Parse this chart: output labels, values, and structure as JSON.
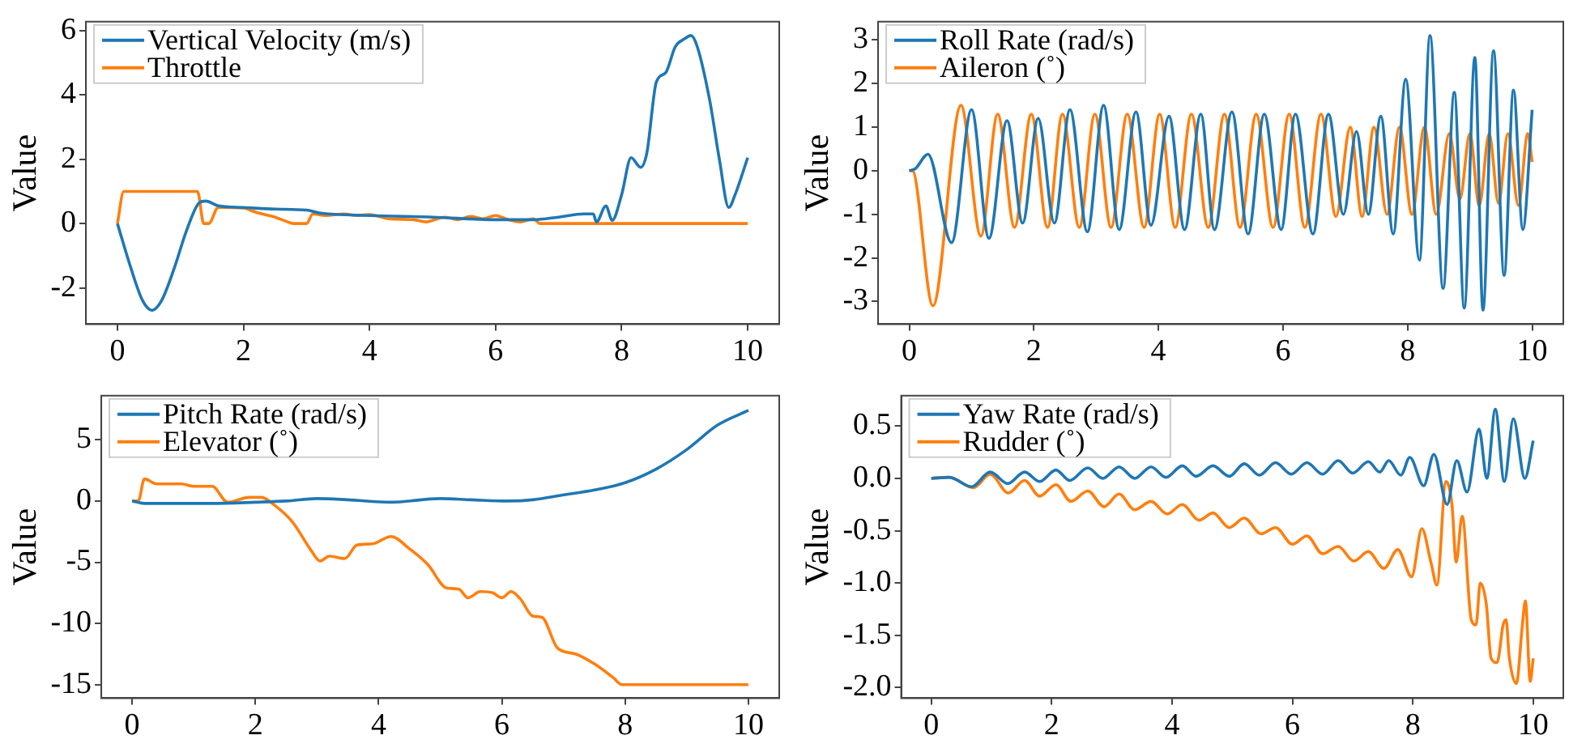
{
  "chart_data": [
    {
      "type": "line",
      "ylabel": "Value",
      "legend": "top left",
      "grid": false,
      "xlim": [
        -0.5,
        10.5
      ],
      "xticks": [
        0,
        2,
        4,
        6,
        8,
        10
      ],
      "ylim": [
        -3.13,
        6.28
      ],
      "yticks": [
        {
          "value": -2,
          "label": "-2"
        },
        0,
        2,
        4,
        6
      ],
      "series": [
        {
          "name": "Vertical Velocity (m/s)",
          "color": "#1f77b4",
          "x": [
            0,
            0.2,
            0.4,
            0.55,
            0.7,
            0.9,
            1.1,
            1.3,
            1.4,
            1.6,
            2,
            2.5,
            3,
            3.2,
            4,
            5,
            6,
            6.6,
            7,
            7.4,
            7.55,
            7.6,
            7.75,
            7.85,
            8,
            8.15,
            8.3,
            8.4,
            8.55,
            8.7,
            8.85,
            9,
            9.1,
            9.2,
            9.4,
            9.55,
            9.7,
            9.8,
            10
          ],
          "values": [
            0,
            -1.3,
            -2.4,
            -2.7,
            -2.4,
            -1.4,
            -0.2,
            0.65,
            0.7,
            0.55,
            0.5,
            0.45,
            0.42,
            0.33,
            0.25,
            0.2,
            0.12,
            0.12,
            0.2,
            0.3,
            0.3,
            0.05,
            0.55,
            0.1,
            0.9,
            2.05,
            1.75,
            2.2,
            4.4,
            4.7,
            5.5,
            5.75,
            5.85,
            5.5,
            3.8,
            2.0,
            0.5,
            0.9,
            2.05
          ]
        },
        {
          "name": "Throttle",
          "color": "#ff7f0e",
          "x": [
            0,
            0.1,
            1.27,
            1.37,
            1.45,
            1.6,
            2,
            2.2,
            2.5,
            2.7,
            2.8,
            3,
            3.1,
            3.3,
            3.6,
            3.8,
            4,
            4.3,
            4.7,
            4.9,
            5,
            5.2,
            5.4,
            5.6,
            5.8,
            6,
            6.2,
            6.4,
            6.6,
            6.7,
            10
          ],
          "values": [
            0,
            1,
            1,
            0,
            0,
            0.5,
            0.48,
            0.35,
            0.2,
            0.05,
            0,
            0,
            0.3,
            0.25,
            0.3,
            0.25,
            0.28,
            0.15,
            0.12,
            0.05,
            0.1,
            0.2,
            0.12,
            0.22,
            0.15,
            0.25,
            0.12,
            0.05,
            0.15,
            0,
            0
          ]
        }
      ]
    },
    {
      "type": "line",
      "ylabel": "Value",
      "legend": "top left",
      "grid": false,
      "xlim": [
        -0.5,
        10.5
      ],
      "xticks": [
        0,
        2,
        4,
        6,
        8,
        10
      ],
      "ylim": [
        -3.52,
        3.42
      ],
      "yticks": [
        {
          "value": -3,
          "label": "-3"
        },
        {
          "value": -2,
          "label": "-2"
        },
        {
          "value": -1,
          "label": "-1"
        },
        0,
        1,
        2,
        3
      ],
      "series": [
        {
          "name": "Roll Rate (rad/s)",
          "color": "#1f77b4",
          "x": [
            0,
            0.1,
            0.3,
            0.68,
            1.0,
            1.28,
            1.57,
            1.82,
            2.07,
            2.33,
            2.58,
            2.86,
            3.12,
            3.37,
            3.64,
            3.88,
            4.17,
            4.42,
            4.68,
            4.9,
            5.18,
            5.44,
            5.7,
            5.97,
            6.2,
            6.48,
            6.73,
            6.97,
            7.18,
            7.37,
            7.57,
            7.77,
            7.97,
            8.19,
            8.36,
            8.57,
            8.75,
            8.91,
            9.08,
            9.21,
            9.38,
            9.55,
            9.7,
            9.85,
            10
          ],
          "values": [
            0,
            0.05,
            0.38,
            -1.65,
            1.4,
            -1.55,
            1.15,
            -1.2,
            1.2,
            -1.2,
            1.4,
            -1.4,
            1.5,
            -1.35,
            1.35,
            -1.25,
            1.25,
            -1.35,
            1.3,
            -1.35,
            1.35,
            -1.45,
            1.3,
            -1.35,
            1.3,
            -1.45,
            1.3,
            -1.0,
            0.9,
            -1.0,
            1.25,
            -1.45,
            2.1,
            -2.05,
            3.1,
            -2.7,
            1.8,
            -3.15,
            2.6,
            -3.2,
            2.75,
            -2.4,
            1.85,
            -1.35,
            1.4
          ]
        },
        {
          "name": "Aileron (˚)",
          "color": "#ff7f0e",
          "x": [
            0,
            0.05,
            0.38,
            0.83,
            1.15,
            1.42,
            1.69,
            1.96,
            2.22,
            2.46,
            2.73,
            2.98,
            3.24,
            3.5,
            3.77,
            4.02,
            4.27,
            4.53,
            4.8,
            5.06,
            5.31,
            5.57,
            5.84,
            6.1,
            6.35,
            6.61,
            6.85,
            7.08,
            7.27,
            7.46,
            7.67,
            7.87,
            8.07,
            8.27,
            8.46,
            8.67,
            8.84,
            9.0,
            9.15,
            9.31,
            9.46,
            9.61,
            9.78,
            9.93,
            10
          ],
          "values": [
            0,
            0,
            -3.1,
            1.5,
            -1.5,
            1.3,
            -1.3,
            1.3,
            -1.3,
            1.3,
            -1.3,
            1.3,
            -1.3,
            1.3,
            -1.3,
            1.3,
            -1.3,
            1.3,
            -1.3,
            1.3,
            -1.3,
            1.3,
            -1.3,
            1.3,
            -1.3,
            1.3,
            -1.05,
            1.0,
            -1.05,
            1.0,
            -1.0,
            1.0,
            -1.0,
            1.0,
            -1.0,
            0.85,
            -0.65,
            0.85,
            -0.8,
            0.85,
            -0.75,
            0.85,
            -0.8,
            0.85,
            0.2
          ]
        }
      ]
    },
    {
      "type": "line",
      "ylabel": "Value",
      "legend": "top left",
      "grid": false,
      "xlim": [
        -0.5,
        10.5
      ],
      "xticks": [
        0,
        2,
        4,
        6,
        8,
        10
      ],
      "ylim": [
        -16.1,
        8.6
      ],
      "yticks": [
        {
          "value": -15,
          "label": "-15"
        },
        {
          "value": -10,
          "label": "-10"
        },
        {
          "value": -5,
          "label": "-5"
        },
        0,
        5
      ],
      "series": [
        {
          "name": "Pitch Rate (rad/s)",
          "color": "#1f77b4",
          "x": [
            0,
            0.2,
            1.3,
            2,
            2.5,
            3,
            3.5,
            4.2,
            5,
            5.5,
            6.1,
            6.5,
            7,
            7.5,
            8,
            8.5,
            9,
            9.5,
            10
          ],
          "values": [
            0,
            -0.2,
            -0.2,
            -0.1,
            0,
            0.2,
            0.1,
            -0.1,
            0.2,
            0.1,
            0,
            0.1,
            0.5,
            0.9,
            1.5,
            2.6,
            4.2,
            6.2,
            7.4
          ]
        },
        {
          "name": "Elevator (˚)",
          "color": "#ff7f0e",
          "x": [
            0,
            0.1,
            0.2,
            0.4,
            0.8,
            1,
            1.3,
            1.55,
            1.9,
            2.1,
            2.3,
            2.6,
            2.9,
            3.05,
            3.2,
            3.45,
            3.65,
            3.9,
            4.2,
            4.5,
            4.8,
            5.1,
            5.3,
            5.45,
            5.65,
            5.85,
            6,
            6.15,
            6.3,
            6.5,
            6.65,
            6.9,
            7.2,
            7.5,
            7.8,
            7.95,
            10
          ],
          "values": [
            0,
            0,
            1.8,
            1.4,
            1.4,
            1.2,
            1.2,
            -0.1,
            0.3,
            0.3,
            -0.3,
            -1.7,
            -4,
            -4.9,
            -4.5,
            -4.7,
            -3.6,
            -3.5,
            -2.9,
            -3.9,
            -5.2,
            -7.1,
            -7.2,
            -7.9,
            -7.4,
            -7.5,
            -7.9,
            -7.4,
            -8,
            -9.4,
            -9.5,
            -12,
            -12.5,
            -13.3,
            -14.4,
            -15,
            -15
          ]
        }
      ]
    },
    {
      "type": "line",
      "ylabel": "Value",
      "legend": "top left",
      "grid": false,
      "xlim": [
        -0.5,
        10.5
      ],
      "xticks": [
        0,
        2,
        4,
        6,
        8,
        10
      ],
      "ylim": [
        -2.1,
        0.79
      ],
      "yticks": [
        {
          "value": -2,
          "label": "-2.0"
        },
        {
          "value": -1.5,
          "label": "-1.5"
        },
        {
          "value": -1,
          "label": "-1.0"
        },
        {
          "value": -0.5,
          "label": "-0.5"
        },
        {
          "value": 0,
          "label": "0.0"
        },
        0.5
      ],
      "series": [
        {
          "name": "Yaw Rate (rad/s)",
          "color": "#1f77b4",
          "x": [
            0,
            0.3,
            0.67,
            0.98,
            1.27,
            1.55,
            1.8,
            2.07,
            2.3,
            2.6,
            2.85,
            3.12,
            3.38,
            3.65,
            3.9,
            4.17,
            4.4,
            4.68,
            4.95,
            5.2,
            5.45,
            5.72,
            5.98,
            6.24,
            6.5,
            6.76,
            7.0,
            7.26,
            7.45,
            7.6,
            7.8,
            7.95,
            8.18,
            8.35,
            8.57,
            8.73,
            8.9,
            9.1,
            9.23,
            9.37,
            9.52,
            9.67,
            9.86,
            10
          ],
          "values": [
            0,
            0.01,
            -0.08,
            0.06,
            -0.05,
            0.06,
            -0.03,
            0.08,
            -0.02,
            0.1,
            0.0,
            0.11,
            0.0,
            0.11,
            0.01,
            0.12,
            0.02,
            0.12,
            0.02,
            0.14,
            0.03,
            0.15,
            0.04,
            0.15,
            0.04,
            0.17,
            0.05,
            0.16,
            0.06,
            0.17,
            0.03,
            0.2,
            -0.07,
            0.23,
            -0.25,
            0.17,
            -0.13,
            0.47,
            0.0,
            0.66,
            -0.03,
            0.57,
            0.0,
            0.36
          ]
        },
        {
          "name": "Rudder (˚)",
          "color": "#ff7f0e",
          "x": [
            0,
            0.3,
            0.7,
            0.98,
            1.28,
            1.55,
            1.8,
            2.07,
            2.32,
            2.6,
            2.87,
            3.12,
            3.38,
            3.65,
            3.92,
            4.17,
            4.45,
            4.68,
            4.95,
            5.2,
            5.48,
            5.72,
            6.0,
            6.24,
            6.5,
            6.76,
            7.02,
            7.26,
            7.52,
            7.75,
            7.98,
            8.15,
            8.3,
            8.4,
            8.55,
            8.65,
            8.72,
            8.82,
            8.97,
            9.05,
            9.12,
            9.22,
            9.3,
            9.4,
            9.5,
            9.55,
            9.6,
            9.72,
            9.82,
            9.87,
            9.95,
            10
          ],
          "values": [
            0,
            0.01,
            -0.09,
            0.04,
            -0.14,
            -0.02,
            -0.17,
            -0.06,
            -0.22,
            -0.12,
            -0.27,
            -0.15,
            -0.3,
            -0.22,
            -0.34,
            -0.25,
            -0.4,
            -0.33,
            -0.47,
            -0.38,
            -0.53,
            -0.47,
            -0.63,
            -0.55,
            -0.72,
            -0.65,
            -0.79,
            -0.7,
            -0.86,
            -0.68,
            -0.94,
            -0.48,
            -0.8,
            -1.02,
            -0.03,
            -0.25,
            -0.8,
            -0.36,
            -1.35,
            -1.4,
            -1.0,
            -1.2,
            -1.72,
            -1.76,
            -1.4,
            -1.35,
            -1.7,
            -1.96,
            -1.4,
            -1.17,
            -1.94,
            -1.72
          ]
        }
      ]
    }
  ]
}
